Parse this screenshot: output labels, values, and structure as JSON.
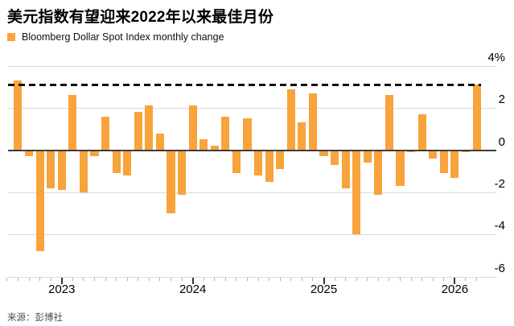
{
  "title": "美元指数有望迎来2022年以来最佳月份",
  "legend": {
    "label": "Bloomberg Dollar Spot Index monthly change",
    "swatch_color": "#F8A33B"
  },
  "source": "来源：彭博社",
  "colors": {
    "bar": "#F8A33B",
    "gridline": "#d9d9d9",
    "zero_line": "#3d3d3d",
    "reference_line": "#111111"
  },
  "chart_data": {
    "type": "bar",
    "series_name": "Bloomberg Dollar Spot Index monthly change",
    "unit": "%",
    "x": [
      "2022-09",
      "2022-10",
      "2022-11",
      "2022-12",
      "2023-01",
      "2023-02",
      "2023-03",
      "2023-04",
      "2023-05",
      "2023-06",
      "2023-07",
      "2023-08",
      "2023-09",
      "2023-10",
      "2023-11",
      "2023-12",
      "2024-01",
      "2024-02",
      "2024-03",
      "2024-04",
      "2024-05",
      "2024-06",
      "2024-07",
      "2024-08",
      "2024-09",
      "2024-10",
      "2024-11",
      "2024-12",
      "2025-01",
      "2025-02",
      "2025-03",
      "2025-04",
      "2025-05",
      "2025-06",
      "2025-07",
      "2025-08",
      "2025-09",
      "2025-10",
      "2025-11",
      "2025-12",
      "2026-01",
      "2026-02",
      "2026-03"
    ],
    "values": [
      3.3,
      -0.3,
      -4.8,
      -1.8,
      -1.9,
      2.6,
      -2.0,
      -0.3,
      1.6,
      -1.1,
      -1.2,
      1.8,
      2.1,
      0.8,
      -3.0,
      -2.1,
      2.1,
      0.5,
      0.2,
      1.6,
      -1.1,
      1.5,
      -1.2,
      -1.5,
      -0.9,
      2.9,
      1.3,
      2.7,
      -0.3,
      -0.7,
      -1.8,
      -4.0,
      -0.6,
      -2.1,
      2.6,
      -1.7,
      -0.1,
      1.7,
      -0.4,
      -1.1,
      -1.3,
      -0.1,
      3.1
    ],
    "reference_line": {
      "value": 3.1,
      "style": "dashed"
    },
    "ylim": [
      -6,
      4
    ],
    "y_ticks": [
      4,
      2,
      0,
      -2,
      -4,
      -6
    ],
    "y_tick_labels": [
      "4%",
      "2",
      "0",
      "-2",
      "-4",
      "-6"
    ],
    "year_ticks": [
      {
        "month_index": 4,
        "label": "2023"
      },
      {
        "month_index": 16,
        "label": "2024"
      },
      {
        "month_index": 28,
        "label": "2025"
      },
      {
        "month_index": 40,
        "label": "2026"
      }
    ],
    "grid": "horizontal",
    "legend_position": "top-left"
  }
}
